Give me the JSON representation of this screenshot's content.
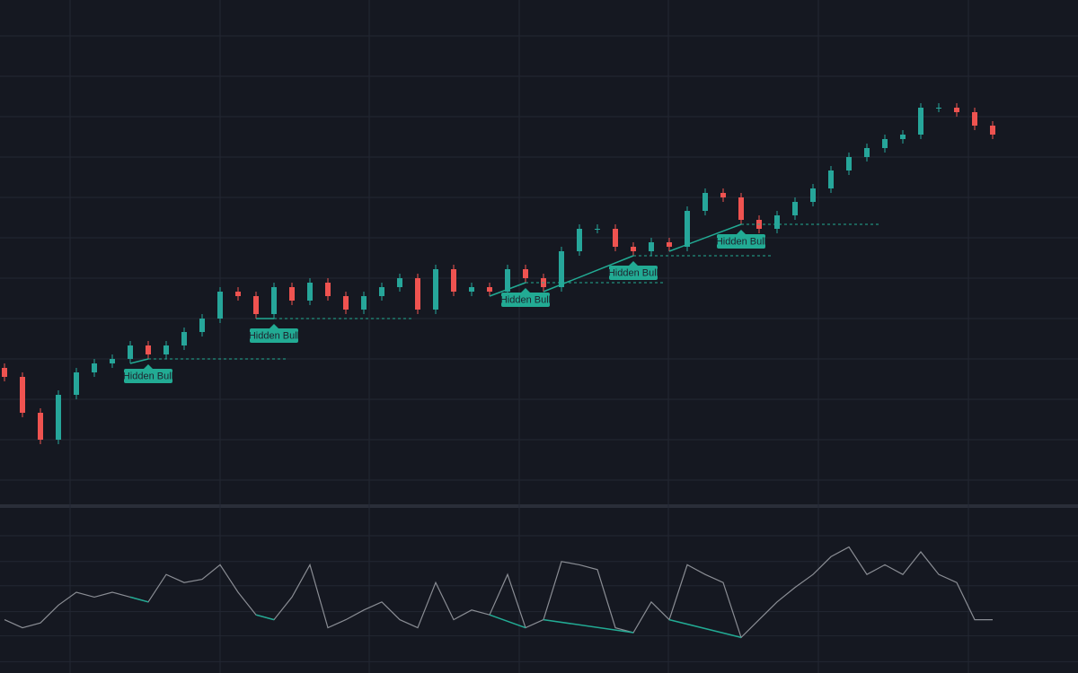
{
  "chart_data": {
    "type": "candlestick",
    "open": [
      30,
      28,
      20,
      14,
      24,
      29,
      31,
      32,
      35,
      33,
      35,
      38,
      41,
      47,
      46,
      42,
      48,
      45,
      49,
      46,
      43,
      46,
      48,
      50,
      43,
      52,
      47,
      48,
      47,
      52,
      50,
      48,
      56,
      61,
      61,
      57,
      56,
      58,
      57,
      65,
      69,
      68,
      63,
      61,
      64,
      67,
      70,
      74,
      77,
      79,
      81,
      82,
      88,
      88,
      87,
      84
    ],
    "high": [
      31,
      29,
      21,
      25,
      30,
      32,
      33,
      36,
      36,
      36,
      39,
      42,
      48,
      48,
      47,
      49,
      49,
      50,
      50,
      47,
      47,
      49,
      51,
      51,
      53,
      53,
      49,
      49,
      53,
      53,
      51,
      57,
      62,
      62,
      62,
      58,
      59,
      59,
      66,
      70,
      70,
      69,
      64,
      65,
      68,
      71,
      75,
      78,
      80,
      82,
      83,
      89,
      89,
      89,
      88,
      85
    ],
    "low": [
      27,
      19,
      13,
      13,
      23,
      28,
      30,
      31,
      32,
      32,
      34,
      37,
      40,
      45,
      41,
      41,
      44,
      44,
      45,
      42,
      42,
      45,
      47,
      42,
      42,
      46,
      46,
      46,
      46,
      49,
      47,
      47,
      55,
      60,
      56,
      55,
      55,
      56,
      56,
      64,
      67,
      62,
      60,
      60,
      63,
      66,
      69,
      73,
      76,
      78,
      80,
      81,
      87,
      86,
      83,
      81
    ],
    "close": [
      28,
      20,
      14,
      24,
      29,
      31,
      32,
      35,
      33,
      35,
      38,
      41,
      47,
      46,
      42,
      48,
      45,
      49,
      46,
      43,
      46,
      48,
      50,
      43,
      52,
      47,
      48,
      47,
      52,
      50,
      48,
      56,
      61,
      61,
      57,
      56,
      58,
      57,
      65,
      69,
      68,
      63,
      61,
      64,
      67,
      70,
      74,
      77,
      79,
      81,
      82,
      88,
      88,
      87,
      84,
      82
    ],
    "up_color": "#26a69a",
    "down_color": "#ef5350",
    "ylim": [
      0,
      112
    ],
    "yticks": [
      5,
      14,
      23,
      32,
      41,
      50,
      59,
      68,
      77,
      86,
      95,
      104
    ],
    "xlim": [
      -0.25,
      59.75
    ],
    "xticks": [
      3.65,
      12,
      20.3,
      28.65,
      36.95,
      45.3,
      53.65
    ],
    "grid": true,
    "oscillator": {
      "type": "line",
      "values": [
        33,
        28,
        31,
        42,
        50,
        47,
        50,
        47,
        44,
        61,
        56,
        58,
        67,
        50,
        36,
        33,
        47,
        67,
        28,
        33,
        39,
        44,
        33,
        28,
        56,
        33,
        39,
        36,
        61,
        28,
        33,
        69,
        67,
        64,
        28,
        25,
        44,
        33,
        67,
        61,
        56,
        22,
        33,
        44,
        53,
        61,
        72,
        78,
        61,
        67,
        61,
        75,
        61,
        56,
        33,
        33
      ],
      "color": "#8a8d94",
      "ylim": [
        0,
        100
      ],
      "yticks": [
        7,
        23,
        38,
        54,
        69,
        85
      ]
    },
    "divergence_color": "#22ab94",
    "divergences": [
      {
        "from": 7,
        "to": 8,
        "label": "Hidden Bull"
      },
      {
        "from": 14,
        "to": 15,
        "label": "Hidden Bull"
      },
      {
        "from": 27,
        "to": 29,
        "label": "Hidden Bull"
      },
      {
        "from": 30,
        "to": 35,
        "label": "Hidden Bull"
      },
      {
        "from": 37,
        "to": 41,
        "label": "Hidden Bull"
      }
    ]
  }
}
